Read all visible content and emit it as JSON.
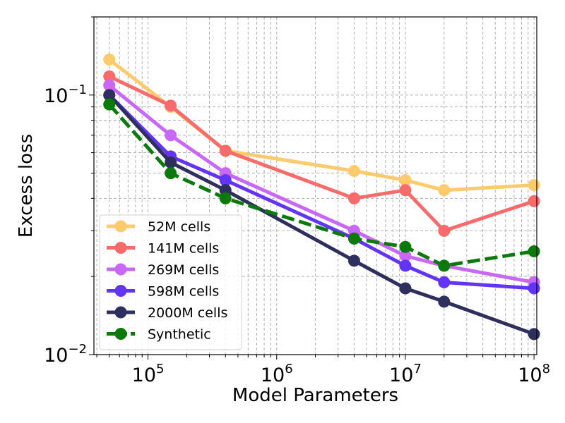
{
  "chart_data": {
    "type": "line",
    "xlabel": "Model Parameters",
    "ylabel": "Excess loss",
    "x_scale": "log",
    "y_scale": "log",
    "xlim": [
      38000,
      105000000
    ],
    "ylim": [
      0.01,
      0.2
    ],
    "grid": true,
    "grid_which": "both",
    "legend_position": "lower-left",
    "x_ticks": [
      {
        "value": 100000,
        "mantissa": "10",
        "exp": "5"
      },
      {
        "value": 1000000,
        "mantissa": "10",
        "exp": "6"
      },
      {
        "value": 10000000,
        "mantissa": "10",
        "exp": "7"
      },
      {
        "value": 100000000,
        "mantissa": "10",
        "exp": "8"
      }
    ],
    "y_ticks": [
      {
        "value": 0.1,
        "mantissa": "10",
        "exp": "−1"
      },
      {
        "value": 0.01,
        "mantissa": "10",
        "exp": "−2"
      }
    ],
    "x": [
      50000,
      150000,
      400000,
      4000000,
      10000000,
      20000000,
      100000000
    ],
    "series": [
      {
        "name": "52M cells",
        "color": "#fdcb6e",
        "dashed": false,
        "values": [
          0.137,
          0.09,
          0.061,
          0.051,
          0.047,
          0.043,
          0.045
        ]
      },
      {
        "name": "141M cells",
        "color": "#f76b6b",
        "dashed": false,
        "values": [
          0.118,
          0.091,
          0.061,
          0.04,
          0.043,
          0.03,
          0.039
        ]
      },
      {
        "name": "269M cells",
        "color": "#c968f7",
        "dashed": false,
        "values": [
          0.109,
          0.07,
          0.05,
          0.03,
          0.024,
          0.022,
          0.019
        ]
      },
      {
        "name": "598M cells",
        "color": "#6234f5",
        "dashed": false,
        "values": [
          0.1,
          0.058,
          0.047,
          0.028,
          0.022,
          0.019,
          0.018
        ]
      },
      {
        "name": "2000M cells",
        "color": "#2f2f5e",
        "dashed": false,
        "values": [
          0.1,
          0.055,
          0.043,
          0.023,
          0.018,
          0.016,
          0.012
        ]
      },
      {
        "name": "Synthetic",
        "color": "#0a7a0a",
        "dashed": true,
        "values": [
          0.092,
          0.05,
          0.04,
          0.028,
          0.026,
          0.022,
          0.025
        ]
      }
    ]
  }
}
